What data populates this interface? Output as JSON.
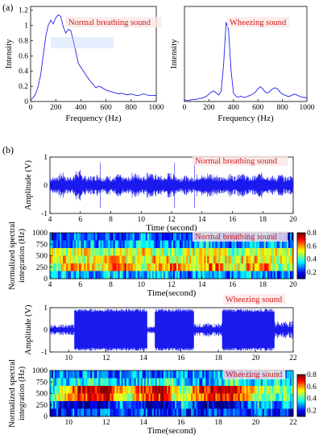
{
  "panel_labels": {
    "a": "(a)",
    "b": "(b)"
  },
  "colors": {
    "trace": "#2222ee",
    "annotation": "#cc1f1f"
  },
  "chart_data": [
    {
      "id": "a1",
      "type": "line",
      "annotation": "Normal breathing sound",
      "xlabel": "Frequency (Hz)",
      "ylabel": "Intensity",
      "xlim": [
        0,
        1000
      ],
      "ylim": [
        0,
        1.25
      ],
      "xticks": [
        0,
        200,
        400,
        600,
        800,
        1000
      ],
      "yticks": [
        0,
        0.2,
        0.4,
        0.6,
        0.8,
        1,
        1.2
      ],
      "x": [
        0,
        20,
        40,
        60,
        80,
        100,
        120,
        140,
        160,
        180,
        200,
        220,
        240,
        260,
        280,
        300,
        320,
        340,
        360,
        380,
        400,
        420,
        440,
        460,
        480,
        500,
        520,
        540,
        560,
        580,
        600,
        620,
        640,
        660,
        680,
        700,
        720,
        740,
        760,
        780,
        800,
        820,
        840,
        860,
        880,
        900,
        920,
        940,
        960,
        980,
        1000
      ],
      "y": [
        0.02,
        0.05,
        0.1,
        0.2,
        0.35,
        0.6,
        0.85,
        1.0,
        1.07,
        1.02,
        1.1,
        1.14,
        1.12,
        0.98,
        0.9,
        0.95,
        0.93,
        0.8,
        0.65,
        0.5,
        0.45,
        0.4,
        0.35,
        0.3,
        0.26,
        0.22,
        0.18,
        0.2,
        0.19,
        0.17,
        0.15,
        0.14,
        0.13,
        0.12,
        0.11,
        0.1,
        0.11,
        0.1,
        0.09,
        0.09,
        0.1,
        0.09,
        0.08,
        0.08,
        0.09,
        0.1,
        0.09,
        0.08,
        0.08,
        0.08,
        0.08
      ]
    },
    {
      "id": "a2",
      "type": "line",
      "annotation": "Wheezing sound",
      "xlabel": "Frequency (Hz)",
      "ylabel": "Intensity",
      "xlim": [
        0,
        1000
      ],
      "ylim": [
        0,
        0.9
      ],
      "xticks": [
        0,
        200,
        400,
        600,
        800,
        1000
      ],
      "x": [
        0,
        20,
        40,
        60,
        80,
        100,
        120,
        140,
        160,
        180,
        200,
        220,
        240,
        260,
        280,
        300,
        320,
        340,
        360,
        380,
        400,
        420,
        440,
        460,
        480,
        500,
        520,
        540,
        560,
        580,
        600,
        620,
        640,
        660,
        680,
        700,
        720,
        740,
        760,
        780,
        800,
        820,
        840,
        860,
        880,
        900,
        920,
        940,
        960,
        980,
        1000
      ],
      "y": [
        0.01,
        0.01,
        0.01,
        0.02,
        0.02,
        0.02,
        0.03,
        0.03,
        0.04,
        0.05,
        0.07,
        0.09,
        0.1,
        0.08,
        0.06,
        0.1,
        0.35,
        0.75,
        0.68,
        0.3,
        0.08,
        0.05,
        0.04,
        0.05,
        0.04,
        0.04,
        0.05,
        0.06,
        0.07,
        0.09,
        0.12,
        0.14,
        0.12,
        0.09,
        0.08,
        0.1,
        0.12,
        0.13,
        0.12,
        0.09,
        0.07,
        0.06,
        0.05,
        0.05,
        0.06,
        0.07,
        0.06,
        0.05,
        0.04,
        0.04,
        0.03
      ]
    },
    {
      "id": "b1",
      "type": "line",
      "annotation": "Normal breathing sound",
      "xlabel": "Time (second)",
      "ylabel": "Amplitude (V)",
      "xlim": [
        4,
        20
      ],
      "ylim": [
        -1,
        1
      ],
      "xticks": [
        4,
        6,
        8,
        10,
        12,
        14,
        16,
        18,
        20
      ],
      "yticks": [
        -1,
        0,
        1
      ],
      "envelope": [
        0.3,
        0.35,
        0.45,
        0.3,
        0.35,
        0.55,
        0.4,
        0.3,
        0.35,
        0.4,
        0.3,
        0.35,
        0.3,
        0.4,
        0.3,
        0.3,
        0.45,
        0.4,
        0.35,
        0.5,
        0.4,
        0.35,
        0.3,
        0.45,
        0.4,
        0.3,
        0.35,
        0.3,
        0.3,
        0.4,
        0.35,
        0.45,
        0.4,
        0.3,
        0.3,
        0.4,
        0.35,
        0.5,
        0.4,
        0.3,
        0.35,
        0.45,
        0.4,
        0.35,
        0.3,
        0.4,
        0.3,
        0.35
      ]
    },
    {
      "id": "b2",
      "type": "heatmap",
      "annotation": "Normal breathing sound",
      "xlabel": "Time(second)",
      "ylabel": "Normalized spectral integration (Hz)",
      "xlim": [
        4,
        20
      ],
      "ylim": [
        0,
        1000
      ],
      "xticks": [
        4,
        6,
        8,
        10,
        12,
        14,
        16,
        18,
        20
      ],
      "yticks": [
        0,
        250,
        500,
        750,
        1000
      ],
      "colorbar": {
        "min": 0.1,
        "max": 0.8,
        "ticks": [
          0.2,
          0.4,
          0.6,
          0.8
        ]
      },
      "band_levels": [
        [
          0.2,
          0.25,
          0.3,
          0.25,
          0.2,
          0.25,
          0.3,
          0.25,
          0.2,
          0.25,
          0.3,
          0.25,
          0.2,
          0.25,
          0.3,
          0.2
        ],
        [
          0.3,
          0.25,
          0.35,
          0.3,
          0.25,
          0.3,
          0.35,
          0.3,
          0.3,
          0.25,
          0.35,
          0.3,
          0.25,
          0.3,
          0.35,
          0.3
        ],
        [
          0.5,
          0.45,
          0.55,
          0.5,
          0.45,
          0.5,
          0.55,
          0.5,
          0.45,
          0.5,
          0.55,
          0.5,
          0.45,
          0.5,
          0.55,
          0.5
        ],
        [
          0.55,
          0.6,
          0.5,
          0.55,
          0.6,
          0.55,
          0.5,
          0.6,
          0.55,
          0.5,
          0.6,
          0.55,
          0.5,
          0.6,
          0.55,
          0.5
        ],
        [
          0.4,
          0.6,
          0.65,
          0.5,
          0.6,
          0.65,
          0.45,
          0.6,
          0.65,
          0.5,
          0.6,
          0.65,
          0.45,
          0.6,
          0.65,
          0.45
        ],
        [
          0.3,
          0.35,
          0.3,
          0.25,
          0.35,
          0.3,
          0.25,
          0.35,
          0.3,
          0.25,
          0.35,
          0.3,
          0.25,
          0.35,
          0.3,
          0.25
        ]
      ]
    },
    {
      "id": "b3",
      "type": "line",
      "annotation": "Wheezing sound",
      "xlabel": "",
      "ylabel": "Amplitude (V)",
      "xlim": [
        9,
        22
      ],
      "ylim": [
        -1,
        1
      ],
      "xticks": [
        10,
        12,
        14,
        16,
        18,
        20,
        22
      ],
      "yticks": [
        -1,
        0,
        1
      ],
      "segments": [
        {
          "start": 9,
          "end": 10.3,
          "amplitude": 0.25
        },
        {
          "start": 10.3,
          "end": 14.2,
          "amplitude": 0.95
        },
        {
          "start": 14.2,
          "end": 14.6,
          "amplitude": 0.15
        },
        {
          "start": 14.6,
          "end": 16.7,
          "amplitude": 0.95
        },
        {
          "start": 16.7,
          "end": 18.2,
          "amplitude": 0.3
        },
        {
          "start": 18.2,
          "end": 21.0,
          "amplitude": 0.95
        },
        {
          "start": 21.0,
          "end": 22,
          "amplitude": 0.4
        }
      ]
    },
    {
      "id": "b4",
      "type": "heatmap",
      "annotation": "Wheezing sound",
      "xlabel": "Time(second)",
      "ylabel": "Normalized spectral integration (Hz)",
      "xlim": [
        9,
        22
      ],
      "ylim": [
        0,
        1000
      ],
      "xticks": [
        10,
        12,
        14,
        16,
        18,
        20,
        22
      ],
      "yticks": [
        0,
        250,
        500,
        750,
        1000
      ],
      "colorbar": {
        "min": 0.1,
        "max": 0.8,
        "ticks": [
          0.2,
          0.4,
          0.6,
          0.8
        ]
      },
      "band_levels": [
        [
          0.25,
          0.25,
          0.3,
          0.25,
          0.3,
          0.25,
          0.25,
          0.3,
          0.25,
          0.3,
          0.25,
          0.25,
          0.3
        ],
        [
          0.35,
          0.35,
          0.4,
          0.35,
          0.3,
          0.35,
          0.4,
          0.35,
          0.3,
          0.35,
          0.4,
          0.35,
          0.35
        ],
        [
          0.35,
          0.65,
          0.75,
          0.78,
          0.5,
          0.7,
          0.78,
          0.45,
          0.7,
          0.78,
          0.75,
          0.5,
          0.45
        ],
        [
          0.4,
          0.6,
          0.7,
          0.72,
          0.45,
          0.65,
          0.7,
          0.4,
          0.65,
          0.72,
          0.7,
          0.45,
          0.4
        ],
        [
          0.3,
          0.15,
          0.12,
          0.15,
          0.3,
          0.15,
          0.12,
          0.35,
          0.15,
          0.12,
          0.15,
          0.35,
          0.3
        ],
        [
          0.2,
          0.25,
          0.2,
          0.25,
          0.2,
          0.25,
          0.2,
          0.25,
          0.2,
          0.25,
          0.2,
          0.25,
          0.2
        ]
      ]
    }
  ]
}
